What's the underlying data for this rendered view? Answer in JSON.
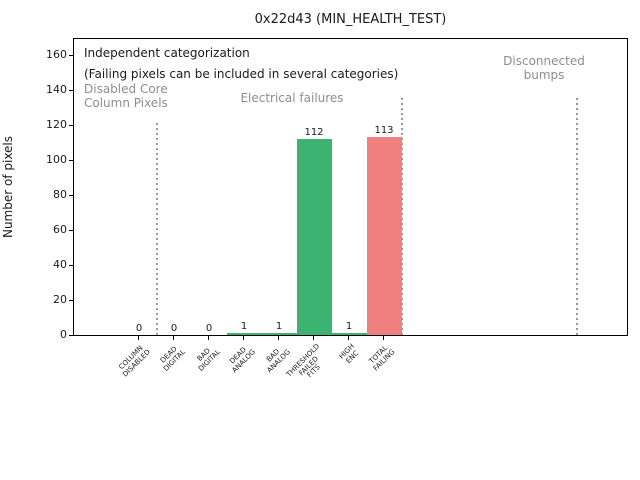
{
  "chart_data": {
    "type": "bar",
    "title": "0x22d43 (MIN_HEALTH_TEST)",
    "ylabel": "Number of pixels",
    "xlabel": "",
    "categories": [
      "COLUMN\nDISABLED",
      "DEAD\nDIGITAL",
      "BAD\nDIGITAL",
      "DEAD\nANALOG",
      "BAD\nANALOG",
      "THRESHOLD\nFAILED\nFITS",
      "HIGH\nENC",
      "TOTAL\nFAILING"
    ],
    "values": [
      0,
      0,
      0,
      1,
      1,
      112,
      1,
      113
    ],
    "value_labels": [
      "0",
      "0",
      "0",
      "1",
      "1",
      "112",
      "1",
      "113"
    ],
    "bar_colors": [
      "#3cb371",
      "#3cb371",
      "#3cb371",
      "#3cb371",
      "#3cb371",
      "#3cb371",
      "#3cb371",
      "#f08080"
    ],
    "ylim": [
      0,
      170
    ],
    "yticks": [
      0,
      20,
      40,
      60,
      80,
      100,
      120,
      140,
      160
    ],
    "grid": false,
    "legend": null,
    "annotations": {
      "note_line1": "Independent categorization",
      "note_line2": "(Failing pixels can be included in several categories)",
      "region_labels": [
        "Disabled Core\nColumn Pixels",
        "Electrical failures",
        "Disconnected\nbumps"
      ]
    },
    "dividers_after_category": [
      0.5,
      7.5,
      12.5
    ],
    "colors": {
      "pass_green": "#3cb371",
      "fail_red": "#f08080",
      "annotation_grey": "#8e8e8e",
      "divider_grey": "#999999"
    }
  }
}
